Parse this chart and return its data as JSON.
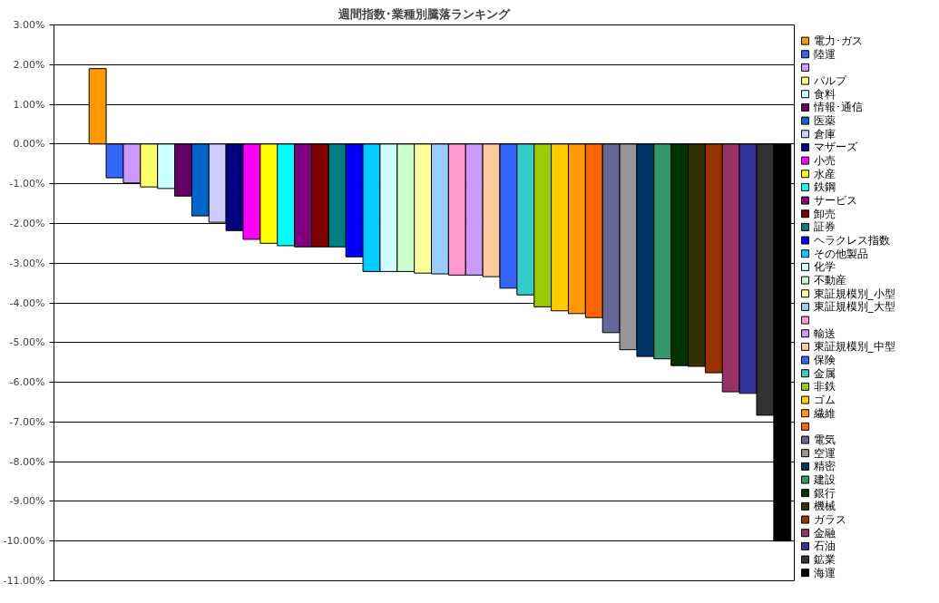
{
  "chart_data": {
    "type": "bar",
    "title": "週間指数･業種別騰落ランキング",
    "categories": [
      null
    ],
    "series": [
      {
        "name": "電力･ガス",
        "color": "#ff9900",
        "values": [
          1.9
        ]
      },
      {
        "name": "陸運",
        "color": "#3366ff",
        "values": [
          -0.85
        ]
      },
      {
        "name": null,
        "color": "#cc99ff",
        "values": [
          -0.98
        ]
      },
      {
        "name": "パルプ",
        "color": "#ffff66",
        "values": [
          -1.08
        ]
      },
      {
        "name": "食料",
        "color": "#ccffff",
        "values": [
          -1.12
        ]
      },
      {
        "name": "情報･通信",
        "color": "#660066",
        "values": [
          -1.31
        ]
      },
      {
        "name": "医薬",
        "color": "#0066cc",
        "values": [
          -1.81
        ]
      },
      {
        "name": "倉庫",
        "color": "#ccccff",
        "values": [
          -1.97
        ]
      },
      {
        "name": "マザーズ",
        "color": "#000080",
        "values": [
          -2.18
        ]
      },
      {
        "name": "小売",
        "color": "#ff00ff",
        "values": [
          -2.4
        ]
      },
      {
        "name": "水産",
        "color": "#ffff00",
        "values": [
          -2.5
        ]
      },
      {
        "name": "鉄鋼",
        "color": "#00ffff",
        "values": [
          -2.56
        ]
      },
      {
        "name": "サービス",
        "color": "#800080",
        "values": [
          -2.59
        ]
      },
      {
        "name": "卸売",
        "color": "#800000",
        "values": [
          -2.59
        ]
      },
      {
        "name": "証券",
        "color": "#008080",
        "values": [
          -2.59
        ]
      },
      {
        "name": "ヘラクレス指数",
        "color": "#0000ff",
        "values": [
          -2.84
        ]
      },
      {
        "name": "その他製品",
        "color": "#00ccff",
        "values": [
          -3.21
        ]
      },
      {
        "name": "化学",
        "color": "#ccffff",
        "values": [
          -3.21
        ]
      },
      {
        "name": "不動産",
        "color": "#ccffcc",
        "values": [
          -3.21
        ]
      },
      {
        "name": "東証規模別_小型",
        "color": "#ffff99",
        "values": [
          -3.25
        ]
      },
      {
        "name": "東証規模別_大型",
        "color": "#99ccff",
        "values": [
          -3.27
        ]
      },
      {
        "name": null,
        "color": "#ff99cc",
        "values": [
          -3.3
        ]
      },
      {
        "name": "輸送",
        "color": "#cc99ff",
        "values": [
          -3.3
        ]
      },
      {
        "name": "東証規模別_中型",
        "color": "#ffcc99",
        "values": [
          -3.34
        ]
      },
      {
        "name": "保険",
        "color": "#3366ff",
        "values": [
          -3.63
        ]
      },
      {
        "name": "金属",
        "color": "#33cccc",
        "values": [
          -3.8
        ]
      },
      {
        "name": "非鉄",
        "color": "#99cc00",
        "values": [
          -4.1
        ]
      },
      {
        "name": "ゴム",
        "color": "#ffcc00",
        "values": [
          -4.2
        ]
      },
      {
        "name": "繊維",
        "color": "#ff9900",
        "values": [
          -4.27
        ]
      },
      {
        "name": null,
        "color": "#ff6600",
        "values": [
          -4.37
        ]
      },
      {
        "name": "電気",
        "color": "#666699",
        "values": [
          -4.75
        ]
      },
      {
        "name": "空運",
        "color": "#969696",
        "values": [
          -5.18
        ]
      },
      {
        "name": "精密",
        "color": "#003366",
        "values": [
          -5.35
        ]
      },
      {
        "name": "建設",
        "color": "#339966",
        "values": [
          -5.41
        ]
      },
      {
        "name": "銀行",
        "color": "#003300",
        "values": [
          -5.58
        ]
      },
      {
        "name": "機械",
        "color": "#333300",
        "values": [
          -5.6
        ]
      },
      {
        "name": "ガラス",
        "color": "#993300",
        "values": [
          -5.76
        ]
      },
      {
        "name": "金融",
        "color": "#993366",
        "values": [
          -6.24
        ]
      },
      {
        "name": "石油",
        "color": "#333399",
        "values": [
          -6.28
        ]
      },
      {
        "name": "鉱業",
        "color": "#333333",
        "values": [
          -6.83
        ]
      },
      {
        "name": "海運",
        "color": "#000000",
        "values": [
          -10.0
        ]
      }
    ],
    "ylim": [
      -11,
      3
    ],
    "yticks": [
      {
        "value": 3,
        "label": "3.00%"
      },
      {
        "value": 2,
        "label": "2.00%"
      },
      {
        "value": 1,
        "label": "1.00%"
      },
      {
        "value": 0,
        "label": "0.00%"
      },
      {
        "value": -1,
        "label": "-1.00%"
      },
      {
        "value": -2,
        "label": "-2.00%"
      },
      {
        "value": -3,
        "label": "-3.00%"
      },
      {
        "value": -4,
        "label": "-4.00%"
      },
      {
        "value": -5,
        "label": "-5.00%"
      },
      {
        "value": -6,
        "label": "-6.00%"
      },
      {
        "value": -7,
        "label": "-7.00%"
      },
      {
        "value": -8,
        "label": "-8.00%"
      },
      {
        "value": -9,
        "label": "-9.00%"
      },
      {
        "value": -10,
        "label": "-10.00%"
      },
      {
        "value": -11,
        "label": "-11.00%"
      }
    ],
    "grid": "y",
    "legend": "right",
    "tick_labels": "y"
  }
}
